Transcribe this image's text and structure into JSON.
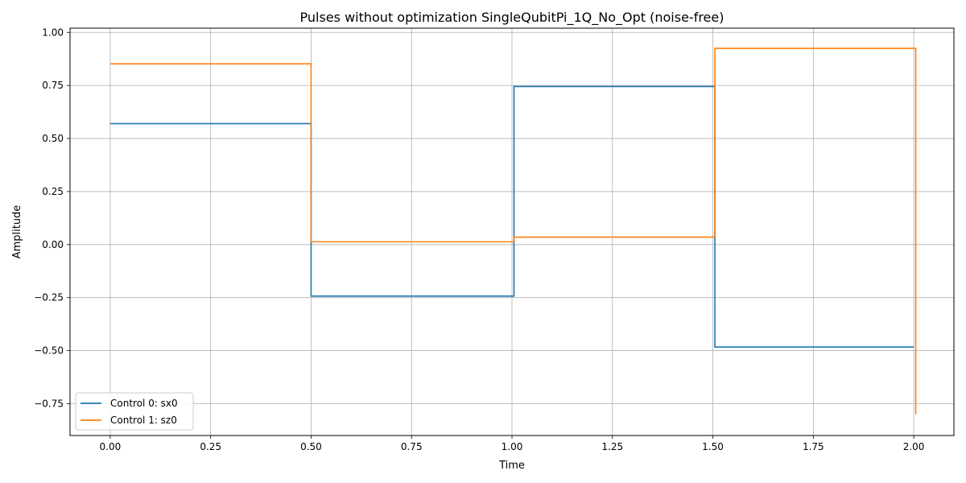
{
  "chart_data": {
    "type": "line",
    "title": "Pulses without optimization SingleQubitPi_1Q_No_Opt (noise-free)",
    "xlabel": "Time",
    "ylabel": "Amplitude",
    "xlim": [
      -0.1,
      2.1
    ],
    "ylim": [
      -0.9,
      1.02
    ],
    "xticks": [
      0.0,
      0.25,
      0.5,
      0.75,
      1.0,
      1.25,
      1.5,
      1.75,
      2.0
    ],
    "xtick_labels": [
      "0.00",
      "0.25",
      "0.50",
      "0.75",
      "1.00",
      "1.25",
      "1.50",
      "1.75",
      "2.00"
    ],
    "yticks": [
      -0.75,
      -0.5,
      -0.25,
      0.0,
      0.25,
      0.5,
      0.75,
      1.0
    ],
    "ytick_labels": [
      "−0.75",
      "−0.50",
      "−0.25",
      "0.00",
      "0.25",
      "0.50",
      "0.75",
      "1.00"
    ],
    "grid": true,
    "legend_position": "lower-left",
    "step": "post",
    "series": [
      {
        "name": "Control 0: sx0",
        "color": "#1f77b4",
        "x": [
          0.0,
          0.5,
          1.005,
          1.505,
          2.0
        ],
        "y": [
          0.57,
          -0.243,
          0.745,
          -0.483,
          -0.483
        ]
      },
      {
        "name": "Control 1: sz0",
        "color": "#ff7f0e",
        "x": [
          0.0,
          0.5,
          1.005,
          1.505,
          2.005,
          2.005
        ],
        "y": [
          0.852,
          0.013,
          0.035,
          0.925,
          0.925,
          -0.8
        ]
      }
    ]
  }
}
